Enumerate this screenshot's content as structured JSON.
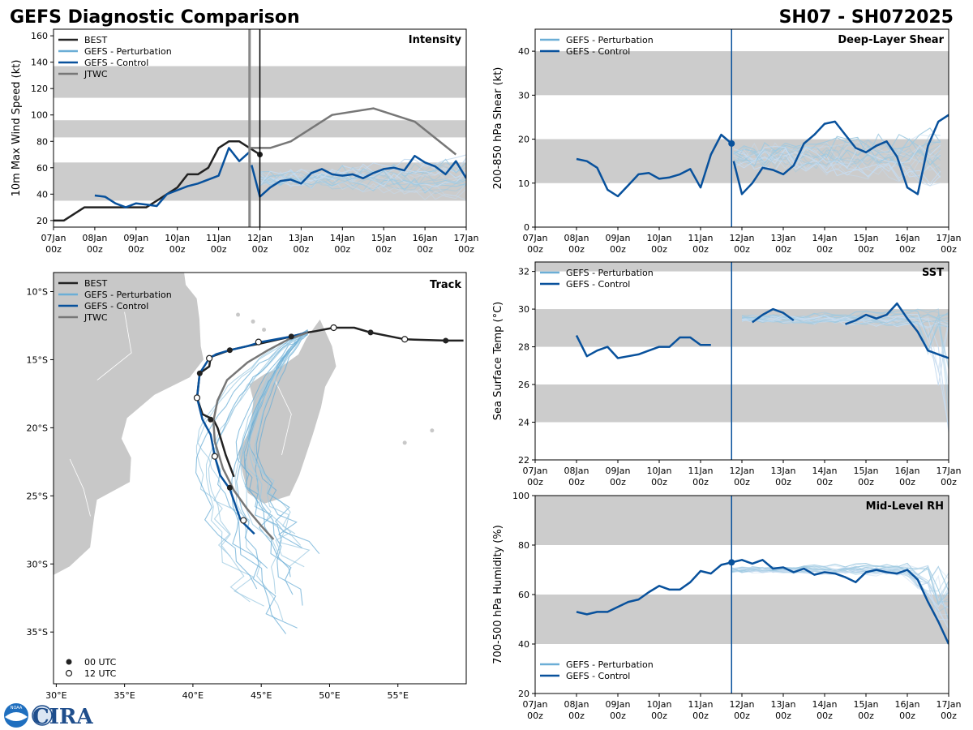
{
  "header": {
    "title": "GEFS Diagnostic Comparison",
    "storm_id": "SH07 - SH072025"
  },
  "colors": {
    "best": "#222222",
    "perturbation": "#6baed6",
    "control": "#08519c",
    "jtwc": "#777777",
    "band": "#cccccc",
    "land": "#c8c8c8",
    "vline": "#08519c"
  },
  "legend_labels": {
    "best": "BEST",
    "perturbation": "GEFS - Perturbation",
    "control": "GEFS - Control",
    "jtwc": "JTWC",
    "utc00": "00 UTC",
    "utc12": "12 UTC"
  },
  "time_axis": {
    "ticks": [
      [
        "07Jan",
        "00z"
      ],
      [
        "08Jan",
        "00z"
      ],
      [
        "09Jan",
        "00z"
      ],
      [
        "10Jan",
        "00z"
      ],
      [
        "11Jan",
        "00z"
      ],
      [
        "12Jan",
        "00z"
      ],
      [
        "13Jan",
        "00z"
      ],
      [
        "14Jan",
        "00z"
      ],
      [
        "15Jan",
        "00z"
      ],
      [
        "16Jan",
        "00z"
      ],
      [
        "17Jan",
        "00z"
      ]
    ]
  },
  "logo": {
    "text": "CIRA",
    "badge": "NOAA"
  },
  "chart_data": [
    {
      "id": "intensity",
      "type": "line",
      "title": "Intensity",
      "ylabel": "10m Max Wind Speed (kt)",
      "xlim": [
        0,
        10
      ],
      "ylim": [
        15,
        165
      ],
      "yticks": [
        20,
        40,
        60,
        80,
        100,
        120,
        140,
        160
      ],
      "bands": [
        [
          35,
          64
        ],
        [
          83,
          96
        ],
        [
          113,
          137
        ]
      ],
      "init_lines": [
        {
          "x": 4.75,
          "color": "gray"
        },
        {
          "x": 5.0,
          "color": "black"
        }
      ],
      "legend": [
        "best",
        "perturbation",
        "control",
        "jtwc"
      ],
      "series": [
        {
          "name": "BEST",
          "role": "best",
          "x": [
            0,
            0.25,
            0.75,
            1,
            1.25,
            1.5,
            1.75,
            2,
            2.25,
            2.5,
            2.75,
            3,
            3.25,
            3.5,
            3.75,
            4,
            4.25,
            4.5,
            4.75,
            5
          ],
          "y": [
            20,
            20,
            30,
            30,
            30,
            30,
            30,
            30,
            30,
            35,
            40,
            45,
            55,
            55,
            60,
            75,
            80,
            80,
            75,
            70
          ],
          "end_marker": true
        },
        {
          "name": "GEFS - Control",
          "role": "control",
          "x": [
            1,
            1.25,
            1.5,
            1.75,
            2,
            2.25,
            2.5,
            2.75,
            3,
            3.25,
            3.5,
            3.75,
            4,
            4.25,
            4.5,
            4.75
          ],
          "y": [
            39,
            38,
            33,
            30,
            33,
            32,
            31,
            40,
            43,
            46,
            48,
            51,
            54,
            75,
            65,
            72
          ]
        },
        {
          "name": "GEFS - Control",
          "role": "control",
          "x": [
            4.8,
            5,
            5.25,
            5.5,
            5.75,
            6,
            6.25,
            6.5,
            6.75,
            7,
            7.25,
            7.5,
            7.75,
            8,
            8.25,
            8.5,
            8.75,
            9,
            9.25,
            9.5,
            9.75,
            10
          ],
          "y": [
            62,
            38,
            45,
            50,
            51,
            48,
            56,
            59,
            55,
            54,
            55,
            52,
            56,
            59,
            60,
            58,
            69,
            64,
            61,
            55,
            65,
            52
          ]
        },
        {
          "name": "JTWC",
          "role": "jtwc",
          "x": [
            4.75,
            5,
            5.25,
            5.75,
            6.75,
            7.75,
            8.75,
            9.75
          ],
          "y": [
            75,
            75,
            75,
            80,
            100,
            105,
            95,
            70
          ]
        }
      ],
      "ensemble": {
        "count": 20,
        "x_start": 5.0,
        "x_end": 10.0,
        "y_center": 52,
        "y_spread": 20
      }
    },
    {
      "id": "shear",
      "type": "line",
      "title": "Deep-Layer Shear",
      "ylabel": "200-850 hPa Shear (kt)",
      "xlim": [
        0,
        10
      ],
      "ylim": [
        0,
        45
      ],
      "yticks": [
        0,
        10,
        20,
        30,
        40
      ],
      "bands": [
        [
          10,
          20
        ],
        [
          30,
          40
        ]
      ],
      "init_lines": [
        {
          "x": 4.75,
          "color": "blue",
          "dot_y": 19
        }
      ],
      "legend": [
        "perturbation",
        "control"
      ],
      "series": [
        {
          "name": "GEFS - Control",
          "role": "control",
          "x": [
            1,
            1.25,
            1.5,
            1.75,
            2,
            2.25,
            2.5,
            2.75,
            3,
            3.25,
            3.5,
            3.75,
            4,
            4.25,
            4.5,
            4.75
          ],
          "y": [
            15.5,
            15,
            13.5,
            8.5,
            7,
            9.5,
            12,
            12.3,
            11,
            11.3,
            12,
            13.2,
            9,
            16.5,
            21,
            19
          ]
        },
        {
          "name": "GEFS - Control",
          "role": "control",
          "x": [
            4.8,
            5,
            5.25,
            5.5,
            5.75,
            6,
            6.25,
            6.5,
            6.75,
            7,
            7.25,
            7.5,
            7.75,
            8,
            8.25,
            8.5,
            8.75,
            9,
            9.25,
            9.5,
            9.75,
            10
          ],
          "y": [
            15,
            7.5,
            10,
            13.5,
            13,
            12,
            14,
            19,
            21,
            23.5,
            24,
            21,
            18,
            17,
            18.5,
            19.5,
            16,
            9,
            7.5,
            18.5,
            24,
            25.5
          ]
        }
      ],
      "ensemble": {
        "count": 20,
        "x_start": 4.8,
        "x_end": 10.0,
        "y_center": 16,
        "y_spread": 9
      }
    },
    {
      "id": "sst",
      "type": "line",
      "title": "SST",
      "ylabel": "Sea Surface Temp (°C)",
      "xlim": [
        0,
        10
      ],
      "ylim": [
        22,
        32.5
      ],
      "yticks": [
        22,
        24,
        26,
        28,
        30,
        32
      ],
      "bands": [
        [
          24,
          26
        ],
        [
          28,
          30
        ],
        [
          32,
          33
        ]
      ],
      "init_lines": [
        {
          "x": 4.75,
          "color": "blue"
        }
      ],
      "legend": [
        "perturbation",
        "control"
      ],
      "series": [
        {
          "name": "GEFS - Control",
          "role": "control",
          "x": [
            1,
            1.25,
            1.5,
            1.75,
            2,
            2.25,
            2.5,
            2.75,
            3,
            3.25,
            3.5,
            3.75,
            4,
            4.25
          ],
          "y": [
            28.6,
            27.5,
            27.8,
            28.0,
            27.4,
            27.5,
            27.6,
            27.8,
            28.0,
            28.0,
            28.5,
            28.5,
            28.1,
            28.1
          ]
        },
        {
          "name": "GEFS - Control",
          "role": "control",
          "x": [
            5.25,
            5.5,
            5.75,
            6,
            6.25
          ],
          "y": [
            29.3,
            29.7,
            30.0,
            29.8,
            29.4
          ]
        },
        {
          "name": "GEFS - Control",
          "role": "control",
          "x": [
            7.5,
            7.75,
            8,
            8.25,
            8.5,
            8.75,
            9,
            9.25,
            9.5,
            9.75,
            10
          ],
          "y": [
            29.2,
            29.4,
            29.7,
            29.5,
            29.7,
            30.3,
            29.5,
            28.8,
            27.8,
            27.6,
            27.4
          ]
        }
      ],
      "ensemble": {
        "count": 20,
        "x_start": 5.0,
        "x_end": 10.0,
        "y_center": 29.5,
        "y_spread": 0.6
      }
    },
    {
      "id": "rh",
      "type": "line",
      "title": "Mid-Level RH",
      "ylabel": "700-500 hPa Humidity (%)",
      "xlim": [
        0,
        10
      ],
      "ylim": [
        20,
        100
      ],
      "yticks": [
        20,
        40,
        60,
        80,
        100
      ],
      "bands": [
        [
          40,
          60
        ],
        [
          80,
          100
        ]
      ],
      "init_lines": [
        {
          "x": 4.75,
          "color": "blue",
          "dot_y": 73
        }
      ],
      "legend": [
        "perturbation",
        "control"
      ],
      "series": [
        {
          "name": "GEFS - Control",
          "role": "control",
          "x": [
            1,
            1.25,
            1.5,
            1.75,
            2,
            2.25,
            2.5,
            2.75,
            3,
            3.25,
            3.5,
            3.75,
            4,
            4.25,
            4.5,
            4.75,
            5,
            5.25,
            5.5,
            5.75,
            6,
            6.25,
            6.5,
            6.75,
            7,
            7.25,
            7.5,
            7.75,
            8,
            8.25,
            8.5,
            8.75,
            9,
            9.25,
            9.5,
            9.75,
            10
          ],
          "y": [
            53,
            52,
            53,
            53,
            55,
            57,
            58,
            61,
            63.5,
            62,
            62,
            65,
            69.5,
            68.5,
            72,
            73,
            74,
            72.5,
            74,
            70.5,
            71,
            69,
            70.5,
            68,
            69,
            68.5,
            67,
            65,
            69,
            70,
            69,
            68.5,
            70,
            66,
            57,
            49,
            40
          ]
        }
      ],
      "ensemble": {
        "count": 20,
        "x_start": 4.75,
        "x_end": 10.0,
        "y_center": 70,
        "y_spread": 4
      }
    },
    {
      "id": "track",
      "type": "scatter",
      "title": "Track",
      "xlim": [
        29.8,
        60
      ],
      "ylim": [
        -38.8,
        -8.6
      ],
      "xticks": [
        30,
        35,
        40,
        45,
        50,
        55
      ],
      "xtick_labels": [
        "30°E",
        "35°E",
        "40°E",
        "45°E",
        "50°E",
        "55°E"
      ],
      "yticks": [
        -10,
        -15,
        -20,
        -25,
        -30,
        -35
      ],
      "ytick_labels": [
        "10°S",
        "15°S",
        "20°S",
        "25°S",
        "30°S",
        "35°S"
      ],
      "legend": [
        "best",
        "perturbation",
        "control",
        "jtwc"
      ],
      "series": [
        {
          "name": "BEST",
          "role": "best",
          "lon": [
            59.8,
            58.5,
            57.0,
            55.5,
            53.0,
            51.8,
            50.3,
            49.0,
            48.4,
            47.2,
            45.0,
            44.0,
            42.7,
            41.3,
            41.2,
            40.5,
            40.3,
            40.7,
            41.5,
            41.8,
            42.4,
            43.0
          ],
          "lat": [
            -13.6,
            -13.6,
            -13.55,
            -13.5,
            -13.0,
            -12.65,
            -12.65,
            -12.9,
            -13.0,
            -13.3,
            -13.8,
            -14.0,
            -14.3,
            -14.8,
            -15.5,
            -16.0,
            -17.8,
            -19.0,
            -19.4,
            -20.0,
            -22.0,
            -23.6
          ]
        },
        {
          "name": "GEFS - Control",
          "role": "control",
          "lon": [
            48.4,
            47.2,
            45.0,
            44.0,
            42.7,
            41.7,
            41.2,
            40.5,
            40.3,
            40.7,
            41.3,
            41.6,
            42.0,
            42.7,
            43.5,
            44.5
          ],
          "lat": [
            -13.0,
            -13.3,
            -13.7,
            -14.0,
            -14.3,
            -14.6,
            -14.9,
            -16.0,
            -17.8,
            -19.4,
            -20.5,
            -22.1,
            -23.5,
            -24.5,
            -26.8,
            -27.8
          ]
        },
        {
          "name": "JTWC",
          "role": "jtwc",
          "lon": [
            48.4,
            47.0,
            45.5,
            44.0,
            42.5,
            41.8,
            41.5,
            41.6,
            42.2,
            43.0,
            44.0,
            45.0,
            45.9
          ],
          "lat": [
            -13.0,
            -13.5,
            -14.3,
            -15.2,
            -16.5,
            -18.0,
            -19.5,
            -21.0,
            -23.0,
            -24.6,
            -26.0,
            -27.2,
            -28.2
          ]
        }
      ],
      "markers_00utc": [
        [
          58.5,
          -13.6
        ],
        [
          53.0,
          -13.0
        ],
        [
          47.2,
          -13.3
        ],
        [
          42.7,
          -14.3
        ],
        [
          40.5,
          -16.0
        ],
        [
          41.3,
          -19.4
        ],
        [
          42.7,
          -24.4
        ]
      ],
      "markers_12utc": [
        [
          55.5,
          -13.5
        ],
        [
          50.3,
          -12.65
        ],
        [
          44.8,
          -13.7
        ],
        [
          41.2,
          -14.9
        ],
        [
          40.3,
          -17.8
        ],
        [
          41.6,
          -22.1
        ],
        [
          43.7,
          -26.8
        ]
      ],
      "ensemble": {
        "count": 20
      }
    }
  ]
}
